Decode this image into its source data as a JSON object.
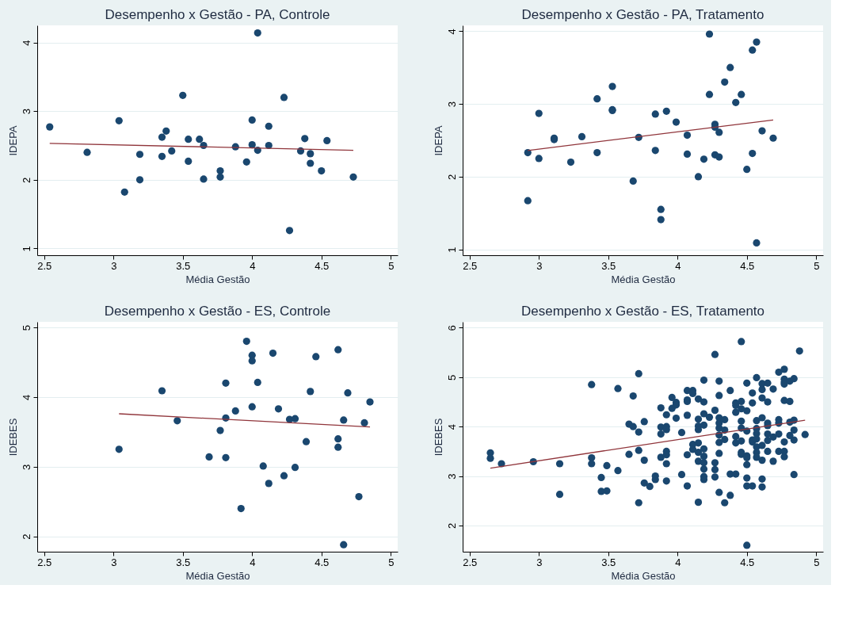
{
  "chart_data": [
    {
      "type": "scatter",
      "title": "Desempenho x Gestão - PA, Controle",
      "xlabel": "Média Gestão",
      "ylabel": "IDEPA",
      "xlim": [
        2.45,
        5.05
      ],
      "ylim": [
        0.9,
        4.25
      ],
      "xticks": [
        2.5,
        3,
        3.5,
        4,
        4.5,
        5
      ],
      "yticks": [
        1,
        2,
        3,
        4
      ],
      "grid": "y",
      "series": [
        {
          "marker": "circle",
          "color": "#1a476f",
          "x": [
            2.54,
            2.81,
            3.04,
            3.08,
            3.19,
            3.19,
            3.35,
            3.35,
            3.38,
            3.42,
            3.5,
            3.54,
            3.54,
            3.62,
            3.65,
            3.65,
            3.77,
            3.77,
            3.88,
            3.96,
            4.0,
            4.0,
            4.04,
            4.04,
            4.12,
            4.12,
            4.23,
            4.27,
            4.35,
            4.38,
            4.42,
            4.42,
            4.5,
            4.54,
            4.73
          ],
          "values": [
            2.77,
            2.4,
            2.86,
            1.82,
            2.37,
            2.0,
            2.62,
            2.34,
            2.71,
            2.42,
            3.23,
            2.59,
            2.27,
            2.59,
            2.5,
            2.01,
            2.13,
            2.04,
            2.48,
            2.26,
            2.87,
            2.51,
            4.14,
            2.43,
            2.78,
            2.5,
            3.2,
            1.26,
            2.42,
            2.6,
            2.38,
            2.24,
            2.13,
            2.57,
            2.04
          ]
        },
        {
          "type": "line",
          "color": "#90353b",
          "x": [
            2.54,
            4.73
          ],
          "values": [
            2.53,
            2.43
          ]
        }
      ]
    },
    {
      "type": "scatter",
      "title": "Desempenho x Gestão - PA, Tratamento",
      "xlabel": "Média Gestão",
      "ylabel": "IDEPA",
      "xlim": [
        2.45,
        5.05
      ],
      "ylim": [
        0.92,
        4.08
      ],
      "xticks": [
        2.5,
        3,
        3.5,
        4,
        4.5,
        5
      ],
      "yticks": [
        1,
        2,
        3,
        4
      ],
      "grid": "y",
      "series": [
        {
          "marker": "circle",
          "color": "#1a476f",
          "x": [
            2.92,
            2.92,
            3.0,
            3.0,
            3.11,
            3.11,
            3.23,
            3.31,
            3.42,
            3.42,
            3.53,
            3.53,
            3.53,
            3.68,
            3.72,
            3.84,
            3.84,
            3.88,
            3.88,
            3.92,
            3.99,
            4.07,
            4.07,
            4.15,
            4.19,
            4.23,
            4.23,
            4.27,
            4.27,
            4.27,
            4.3,
            4.3,
            4.34,
            4.38,
            4.42,
            4.46,
            4.5,
            4.54,
            4.54,
            4.57,
            4.57,
            4.61,
            4.69
          ],
          "values": [
            2.33,
            1.67,
            2.87,
            2.25,
            2.53,
            2.51,
            2.2,
            2.55,
            3.07,
            2.33,
            3.24,
            2.92,
            2.91,
            1.94,
            2.54,
            2.86,
            2.36,
            1.55,
            1.41,
            2.9,
            2.75,
            2.57,
            2.31,
            2.0,
            2.24,
            3.96,
            3.13,
            2.72,
            2.68,
            2.3,
            2.61,
            2.27,
            3.3,
            3.5,
            3.02,
            3.13,
            2.1,
            3.74,
            2.32,
            3.85,
            1.09,
            2.63,
            2.53
          ]
        },
        {
          "type": "line",
          "color": "#90353b",
          "x": [
            2.92,
            4.69
          ],
          "values": [
            2.36,
            2.78
          ]
        }
      ]
    },
    {
      "type": "scatter",
      "title": "Desempenho x Gestão - ES, Controle",
      "xlabel": "Média Gestão",
      "ylabel": "IDEBES",
      "xlim": [
        2.45,
        5.05
      ],
      "ylim": [
        1.78,
        5.08
      ],
      "xticks": [
        2.5,
        3,
        3.5,
        4,
        4.5,
        5
      ],
      "yticks": [
        2,
        3,
        4,
        5
      ],
      "grid": "y",
      "series": [
        {
          "marker": "circle",
          "color": "#1a476f",
          "x": [
            3.04,
            3.35,
            3.46,
            3.69,
            3.77,
            3.81,
            3.81,
            3.81,
            3.88,
            3.92,
            3.96,
            4.0,
            4.0,
            4.0,
            4.04,
            4.08,
            4.12,
            4.15,
            4.19,
            4.23,
            4.27,
            4.31,
            4.31,
            4.39,
            4.42,
            4.46,
            4.62,
            4.62,
            4.62,
            4.66,
            4.66,
            4.69,
            4.77,
            4.81,
            4.85
          ],
          "values": [
            3.25,
            4.09,
            3.66,
            3.14,
            3.52,
            4.2,
            3.7,
            3.13,
            3.8,
            2.4,
            4.8,
            4.6,
            4.52,
            3.86,
            4.21,
            3.01,
            2.76,
            4.63,
            3.83,
            2.87,
            3.68,
            3.69,
            2.99,
            3.36,
            4.08,
            4.58,
            4.68,
            3.4,
            3.28,
            3.67,
            1.88,
            4.06,
            2.57,
            3.63,
            3.93
          ]
        },
        {
          "type": "line",
          "color": "#90353b",
          "x": [
            3.04,
            4.85
          ],
          "values": [
            3.76,
            3.57
          ]
        }
      ]
    },
    {
      "type": "scatter",
      "title": "Desempenho x Gestão - ES, Tratamento",
      "xlabel": "Média Gestão",
      "ylabel": "IDEBES",
      "xlim": [
        2.45,
        5.05
      ],
      "ylim": [
        1.47,
        6.12
      ],
      "xticks": [
        2.5,
        3,
        3.5,
        4,
        4.5,
        5
      ],
      "yticks": [
        2,
        3,
        4,
        5,
        6
      ],
      "grid": "y",
      "series": [
        {
          "marker": "circle",
          "color": "#1a476f",
          "x": [
            2.65,
            2.65,
            2.73,
            2.96,
            3.15,
            3.15,
            3.38,
            3.38,
            3.38,
            3.45,
            3.45,
            3.49,
            3.49,
            3.57,
            3.57,
            3.65,
            3.65,
            3.68,
            3.68,
            3.72,
            3.72,
            3.72,
            3.72,
            3.76,
            3.76,
            3.76,
            3.8,
            3.84,
            3.84,
            3.88,
            3.88,
            3.88,
            3.88,
            3.92,
            3.92,
            3.92,
            3.92,
            3.92,
            3.92,
            3.92,
            3.96,
            3.96,
            3.99,
            3.99,
            3.99,
            4.03,
            4.03,
            4.07,
            4.07,
            4.07,
            4.07,
            4.07,
            4.07,
            4.11,
            4.11,
            4.11,
            4.11,
            4.15,
            4.15,
            4.15,
            4.15,
            4.15,
            4.15,
            4.15,
            4.15,
            4.19,
            4.19,
            4.19,
            4.19,
            4.19,
            4.19,
            4.19,
            4.19,
            4.19,
            4.19,
            4.23,
            4.27,
            4.27,
            4.27,
            4.27,
            4.27,
            4.3,
            4.3,
            4.3,
            4.3,
            4.3,
            4.3,
            4.3,
            4.3,
            4.3,
            4.34,
            4.34,
            4.34,
            4.34,
            4.38,
            4.38,
            4.38,
            4.42,
            4.42,
            4.42,
            4.42,
            4.42,
            4.42,
            4.46,
            4.46,
            4.46,
            4.46,
            4.46,
            4.46,
            4.46,
            4.46,
            4.5,
            4.5,
            4.5,
            4.5,
            4.5,
            4.5,
            4.5,
            4.5,
            4.5,
            4.54,
            4.54,
            4.54,
            4.54,
            4.54,
            4.57,
            4.57,
            4.57,
            4.57,
            4.57,
            4.57,
            4.57,
            4.57,
            4.61,
            4.61,
            4.61,
            4.61,
            4.61,
            4.61,
            4.61,
            4.61,
            4.65,
            4.65,
            4.65,
            4.65,
            4.65,
            4.65,
            4.65,
            4.69,
            4.69,
            4.69,
            4.73,
            4.73,
            4.73,
            4.73,
            4.73,
            4.77,
            4.77,
            4.77,
            4.77,
            4.77,
            4.77,
            4.77,
            4.77,
            4.81,
            4.81,
            4.81,
            4.81,
            4.84,
            4.84,
            4.84,
            4.84,
            4.84,
            4.88,
            4.92
          ],
          "values": [
            3.47,
            3.36,
            3.25,
            3.29,
            3.25,
            2.63,
            4.85,
            3.37,
            3.25,
            2.97,
            2.69,
            3.21,
            2.7,
            4.77,
            3.11,
            4.05,
            3.44,
            4.62,
            4.0,
            5.07,
            3.89,
            3.52,
            2.46,
            4.1,
            3.32,
            2.86,
            2.79,
            3.0,
            2.93,
            4.38,
            3.99,
            3.85,
            3.38,
            4.24,
            4.0,
            3.94,
            3.5,
            3.43,
            3.25,
            2.9,
            4.59,
            4.37,
            4.49,
            4.44,
            4.17,
            3.88,
            3.03,
            4.73,
            4.54,
            4.51,
            4.23,
            3.43,
            2.8,
            4.73,
            4.67,
            3.64,
            3.54,
            4.56,
            4.15,
            4.01,
            3.94,
            3.67,
            3.48,
            3.3,
            2.47,
            4.94,
            4.5,
            4.26,
            4.03,
            3.55,
            3.4,
            3.27,
            3.14,
            2.99,
            2.93,
            4.19,
            5.46,
            4.33,
            3.27,
            3.13,
            2.98,
            4.92,
            4.63,
            4.18,
            4.07,
            3.97,
            3.83,
            3.68,
            3.46,
            2.67,
            4.14,
            3.93,
            3.74,
            2.46,
            4.73,
            3.04,
            2.61,
            4.48,
            4.43,
            4.29,
            3.8,
            3.67,
            3.04,
            5.72,
            4.51,
            4.36,
            4.11,
            3.97,
            3.71,
            3.48,
            3.44,
            4.88,
            4.32,
            3.91,
            3.41,
            3.37,
            3.23,
            2.96,
            2.8,
            1.6,
            4.68,
            4.48,
            3.73,
            3.69,
            2.8,
            4.99,
            4.12,
            3.96,
            3.86,
            3.75,
            3.59,
            3.48,
            3.38,
            4.87,
            4.75,
            4.58,
            4.18,
            3.62,
            3.32,
            2.94,
            2.78,
            4.88,
            4.5,
            4.07,
            4.02,
            3.85,
            3.72,
            3.5,
            4.76,
            3.79,
            3.3,
            5.1,
            4.14,
            4.07,
            3.85,
            3.5,
            5.16,
            4.96,
            4.9,
            4.86,
            4.53,
            3.69,
            3.5,
            3.39,
            4.92,
            4.51,
            4.09,
            3.82,
            4.97,
            4.13,
            3.93,
            3.73,
            3.03,
            5.53,
            3.84
          ]
        },
        {
          "type": "line",
          "color": "#90353b",
          "x": [
            2.65,
            4.92
          ],
          "values": [
            3.16,
            4.13
          ]
        }
      ]
    }
  ]
}
